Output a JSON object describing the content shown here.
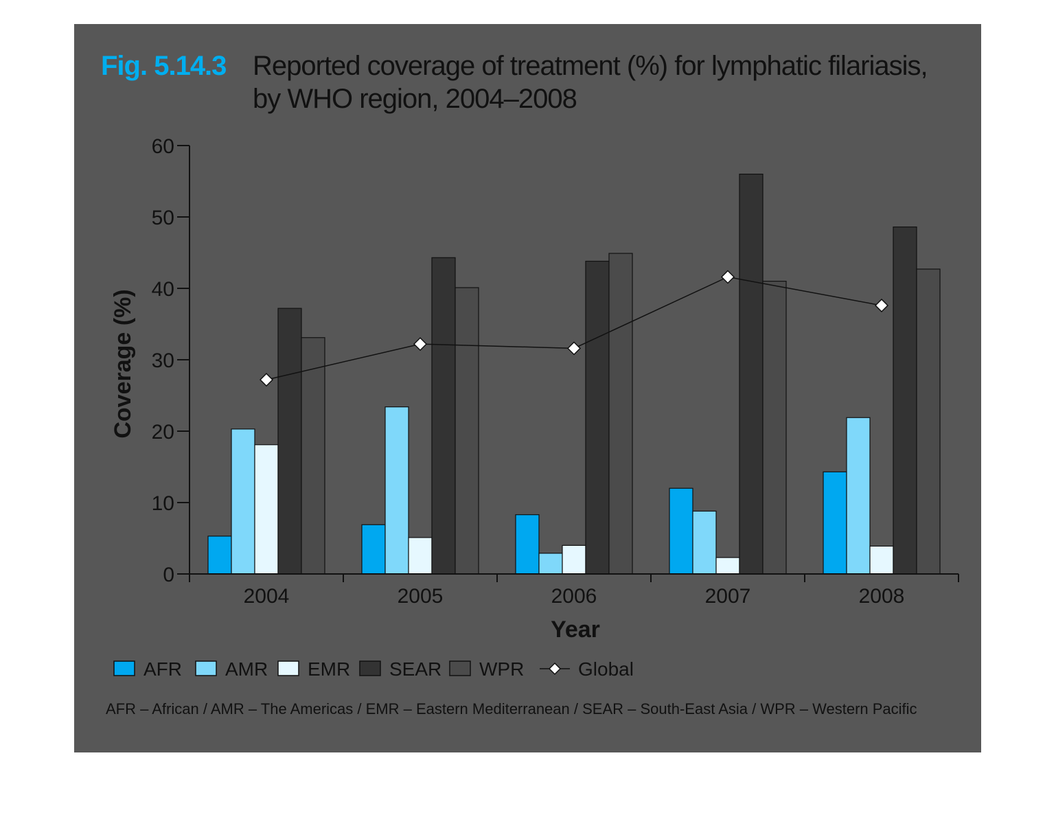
{
  "figure": {
    "label": "Fig. 5.14.3",
    "title_line1": "Reported coverage of treatment (%) for lymphatic filariasis,",
    "title_line2": "by WHO region, 2004–2008",
    "footnote": "AFR – African / AMR – The Americas / EMR – Eastern Mediterranean / SEAR – South-East Asia / WPR – Western Pacific"
  },
  "chart_data": {
    "type": "bar",
    "xlabel": "Year",
    "ylabel": "Coverage (%)",
    "ylim": [
      0,
      60
    ],
    "yticks": [
      "0",
      "10",
      "20",
      "30",
      "40",
      "50",
      "60"
    ],
    "categories": [
      "2004",
      "2005",
      "2006",
      "2007",
      "2008"
    ],
    "series": [
      {
        "name": "AFR",
        "color": "#00a8f0",
        "values": [
          5.3,
          6.9,
          8.3,
          12.0,
          14.3
        ]
      },
      {
        "name": "AMR",
        "color": "#7fd8fa",
        "values": [
          20.3,
          23.4,
          2.9,
          8.8,
          21.9
        ]
      },
      {
        "name": "EMR",
        "color": "#e6f8ff",
        "values": [
          18.1,
          5.1,
          4.0,
          2.3,
          3.9
        ]
      },
      {
        "name": "SEAR",
        "color": "#333333",
        "values": [
          37.2,
          44.3,
          43.8,
          56.0,
          48.6
        ]
      },
      {
        "name": "WPR",
        "color": "#4b4b4b",
        "values": [
          33.1,
          40.1,
          44.9,
          41.0,
          42.7
        ]
      }
    ],
    "line_series": {
      "name": "Global",
      "type": "line",
      "marker": "diamond",
      "values": [
        27.2,
        32.2,
        31.6,
        41.6,
        37.6
      ]
    },
    "legend": {
      "placement": "bottom",
      "items": [
        "AFR",
        "AMR",
        "EMR",
        "SEAR",
        "WPR",
        "Global"
      ]
    }
  }
}
